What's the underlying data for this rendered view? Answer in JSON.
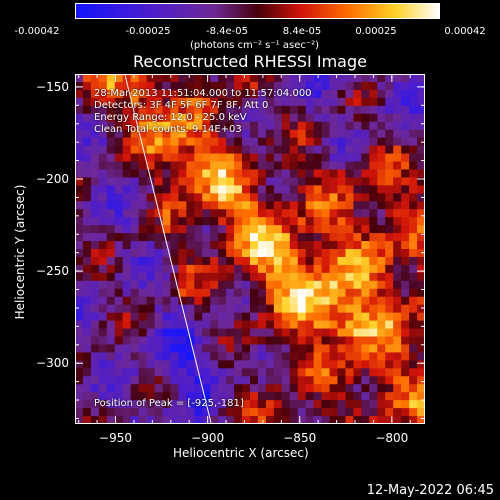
{
  "colorbar": {
    "ticks": [
      "-0.00042",
      "-0.00025",
      "-8.4e-05",
      "8.4e-05",
      "0.00025",
      "0.00042"
    ],
    "units_label": "(photons cm⁻² s⁻¹ asec⁻²)"
  },
  "chart_data": {
    "type": "heatmap",
    "title": "Reconstructed RHESSI Image",
    "xlabel": "Heliocentric X (arcsec)",
    "ylabel": "Heliocentric Y (arcsec)",
    "xlim": [
      -972,
      -782
    ],
    "ylim": [
      -333,
      -143
    ],
    "x_ticks": [
      -950,
      -900,
      -850,
      -800
    ],
    "y_ticks": [
      -150,
      -200,
      -250,
      -300
    ],
    "x_tick_labels": [
      "−950",
      "−900",
      "−850",
      "−800"
    ],
    "y_tick_labels": [
      "−150",
      "−200",
      "−250",
      "−300"
    ],
    "color_range": [
      -0.00042,
      0.00042
    ],
    "colormap": "blue-purple-red-orange-yellow-white",
    "limb_line": {
      "x": [
        -945,
        -898
      ],
      "y": [
        -143,
        -333
      ]
    },
    "annotations": [
      "28-Mar-2013 11:51:04.000 to 11:57:04.000",
      "Detectors: 3F 4F 5F 6F 7F 8F, Att 0",
      "Energy Range: 12.0 - 25.0 keV",
      "Clean   Total counts: 9.14E+03"
    ],
    "peak_label": "Position of Peak = [-925,-181]",
    "peak": {
      "x": -925,
      "y": -181
    }
  },
  "footer": {
    "timestamp": "12-May-2022 06:45"
  }
}
